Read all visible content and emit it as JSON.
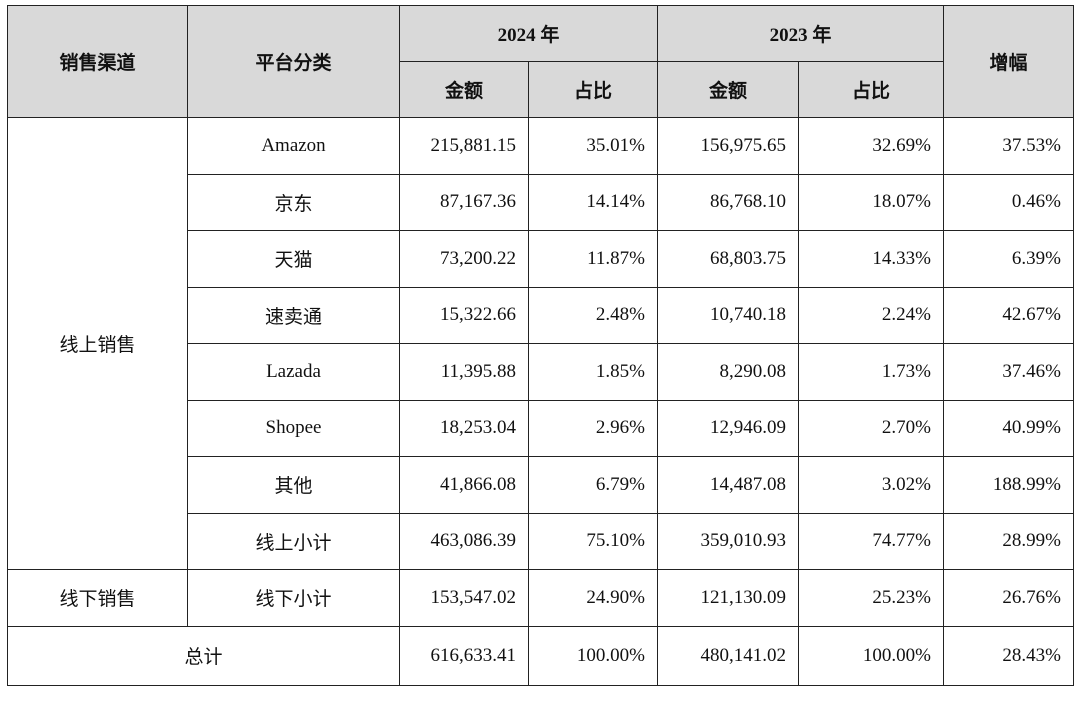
{
  "table": {
    "header": {
      "channel": "销售渠道",
      "platform": "平台分类",
      "year1": "2024 年",
      "year2": "2023 年",
      "growth": "增幅",
      "amount1": "金额",
      "share1": "占比",
      "amount2": "金额",
      "share2": "占比"
    },
    "groups": [
      {
        "label": "线上销售",
        "rows": [
          [
            "Amazon",
            "215,881.15",
            "35.01%",
            "156,975.65",
            "32.69%",
            "37.53%"
          ],
          [
            "京东",
            "87,167.36",
            "14.14%",
            "86,768.10",
            "18.07%",
            "0.46%"
          ],
          [
            "天猫",
            "73,200.22",
            "11.87%",
            "68,803.75",
            "14.33%",
            "6.39%"
          ],
          [
            "速卖通",
            "15,322.66",
            "2.48%",
            "10,740.18",
            "2.24%",
            "42.67%"
          ],
          [
            "Lazada",
            "11,395.88",
            "1.85%",
            "8,290.08",
            "1.73%",
            "37.46%"
          ],
          [
            "Shopee",
            "18,253.04",
            "2.96%",
            "12,946.09",
            "2.70%",
            "40.99%"
          ],
          [
            "其他",
            "41,866.08",
            "6.79%",
            "14,487.08",
            "3.02%",
            "188.99%"
          ],
          [
            "线上小计",
            "463,086.39",
            "75.10%",
            "359,010.93",
            "74.77%",
            "28.99%"
          ]
        ]
      },
      {
        "label": "线下销售",
        "rows": [
          [
            "线下小计",
            "153,547.02",
            "24.90%",
            "121,130.09",
            "25.23%",
            "26.76%"
          ]
        ]
      }
    ],
    "total": {
      "label": "总计",
      "cells": [
        "616,633.41",
        "100.00%",
        "480,141.02",
        "100.00%",
        "28.43%"
      ]
    }
  }
}
